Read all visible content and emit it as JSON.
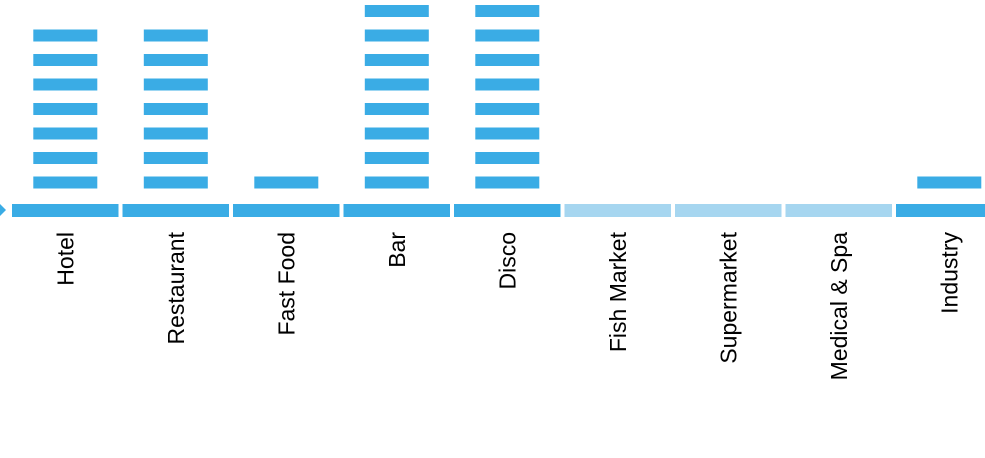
{
  "chart_data": {
    "type": "bar",
    "categories": [
      "Hotel",
      "Restaurant",
      "Fast Food",
      "Bar",
      "Disco",
      "Fish Market",
      "Supermarket",
      "Medical & Spa",
      "Industry"
    ],
    "values": [
      7,
      7,
      1,
      8,
      8,
      0,
      0,
      0,
      1
    ],
    "enabled": [
      true,
      true,
      true,
      true,
      true,
      false,
      false,
      false,
      true
    ],
    "ylim": [
      0,
      8
    ],
    "grid": false,
    "legend": "none",
    "title": "",
    "xlabel": "",
    "ylabel": ""
  },
  "colors": {
    "active": "#3aace5",
    "inactive": "#a6d6f0",
    "label": "#000000"
  }
}
